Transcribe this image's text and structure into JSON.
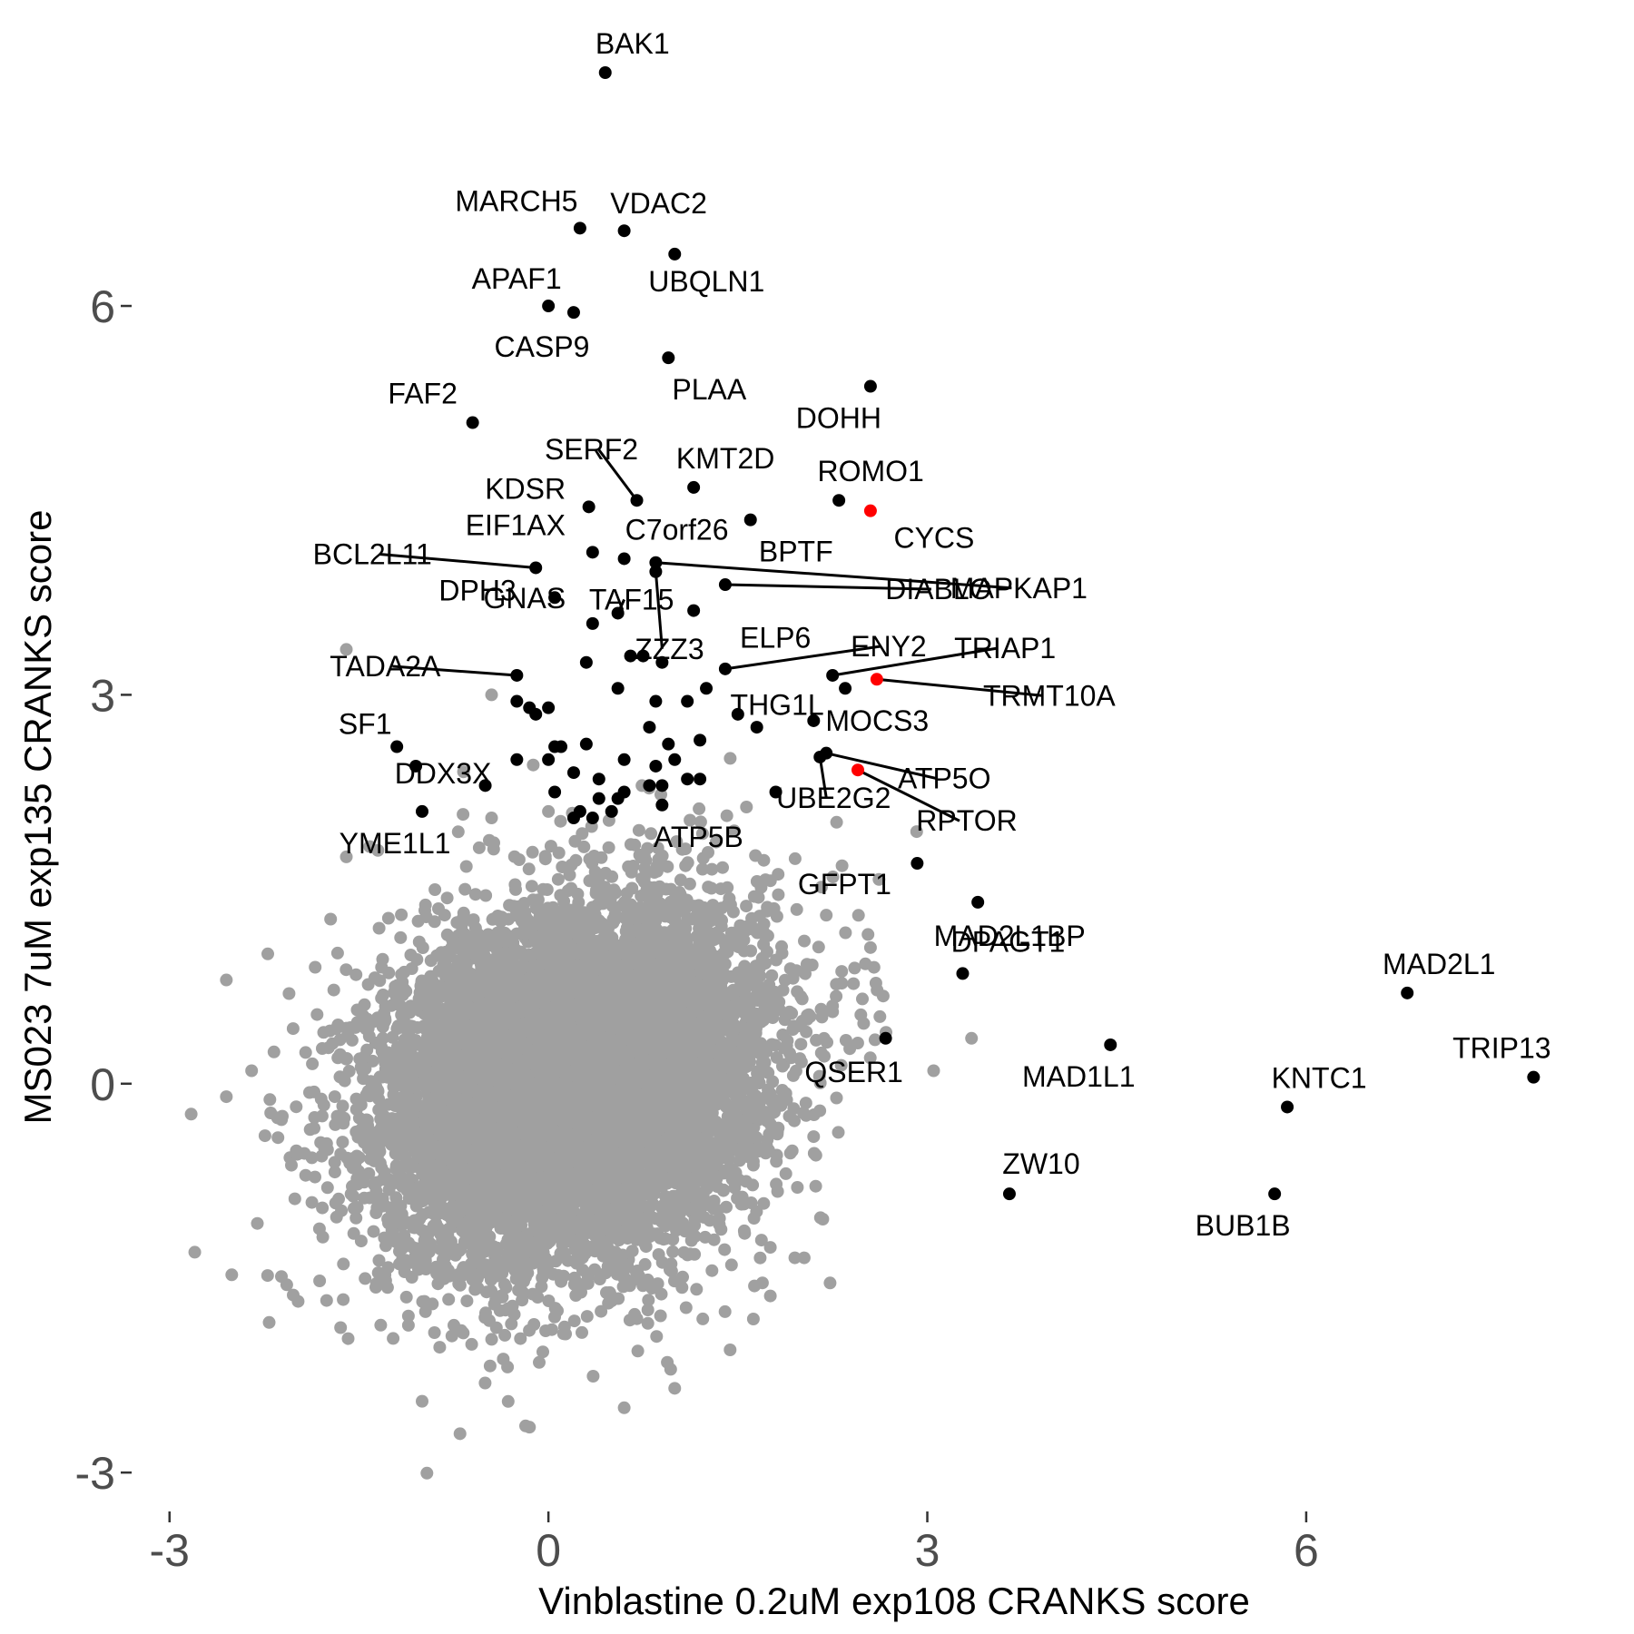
{
  "chart_data": {
    "type": "scatter",
    "xlabel": "Vinblastine 0.2uM exp108 CRANKS score",
    "ylabel": "MS023 7uM exp135 CRANKS score",
    "xlim": [
      -3.3,
      8.2
    ],
    "ylim": [
      -3.3,
      7.8
    ],
    "grid": false,
    "legend": "none",
    "x_ticks": [
      {
        "value": -3,
        "label": "-3"
      },
      {
        "value": 0,
        "label": "0"
      },
      {
        "value": 3,
        "label": "3"
      },
      {
        "value": 6,
        "label": "6"
      }
    ],
    "y_ticks": [
      {
        "value": -3,
        "label": "-3"
      },
      {
        "value": 0,
        "label": "0"
      },
      {
        "value": 3,
        "label": "3"
      },
      {
        "value": 6,
        "label": "6"
      }
    ],
    "colors": {
      "background_points": "#a0a0a0",
      "highlight": "#000000",
      "red_highlight": "#ff0000"
    },
    "background_cloud": {
      "description_of_shape": "dense roughly elliptical cloud",
      "center": [
        0.2,
        0.0
      ],
      "sd": [
        0.75,
        0.68
      ],
      "correlation": 0.2,
      "count": 9000
    },
    "background_outliers": [
      [
        -2.8,
        -1.3
      ],
      [
        -2.55,
        0.8
      ],
      [
        -2.55,
        -0.1
      ],
      [
        -1.6,
        3.35
      ],
      [
        -0.45,
        3.0
      ],
      [
        -1.6,
        1.75
      ],
      [
        -1.35,
        1.8
      ],
      [
        -0.15,
        -2.65
      ],
      [
        -0.7,
        -2.7
      ],
      [
        -1.0,
        -2.45
      ],
      [
        3.05,
        0.1
      ],
      [
        3.35,
        0.35
      ],
      [
        2.55,
        1.05
      ],
      [
        2.25,
        0.6
      ],
      [
        2.2,
        1.3
      ],
      [
        0.6,
        -2.5
      ],
      [
        1.0,
        -2.35
      ],
      [
        0.0,
        2.1
      ],
      [
        -0.45,
        2.05
      ],
      [
        -2.35,
        0.1
      ]
    ],
    "labeled_points": [
      {
        "label": "BAK1",
        "x": 0.45,
        "y": 7.8,
        "color": "black"
      },
      {
        "label": "MARCH5",
        "x": 0.25,
        "y": 6.6,
        "color": "black"
      },
      {
        "label": "VDAC2",
        "x": 0.6,
        "y": 6.58,
        "color": "black"
      },
      {
        "label": "UBQLN1",
        "x": 1.0,
        "y": 6.4,
        "color": "black"
      },
      {
        "label": "APAF1",
        "x": 0.0,
        "y": 6.0,
        "color": "black"
      },
      {
        "label": "CASP9",
        "x": 0.2,
        "y": 5.95,
        "color": "black"
      },
      {
        "label": "PLAA",
        "x": 0.95,
        "y": 5.6,
        "color": "black"
      },
      {
        "label": "DOHH",
        "x": 2.55,
        "y": 5.38,
        "color": "black"
      },
      {
        "label": "FAF2",
        "x": -0.6,
        "y": 5.1,
        "color": "black"
      },
      {
        "label": "SERF2",
        "x": 0.7,
        "y": 4.5,
        "color": "black"
      },
      {
        "label": "KMT2D",
        "x": 1.15,
        "y": 4.6,
        "color": "black"
      },
      {
        "label": "ROMO1",
        "x": 2.3,
        "y": 4.5,
        "color": "black"
      },
      {
        "label": "CYCS",
        "x": 2.55,
        "y": 4.42,
        "color": "red"
      },
      {
        "label": "KDSR",
        "x": 0.32,
        "y": 4.45,
        "color": "black"
      },
      {
        "label": "BPTF",
        "x": 1.6,
        "y": 4.35,
        "color": "black"
      },
      {
        "label": "EIF1AX",
        "x": 0.35,
        "y": 4.1,
        "color": "black"
      },
      {
        "label": "C7orf26",
        "x": 0.6,
        "y": 4.05,
        "color": "black"
      },
      {
        "label": "BCL2L11",
        "x": -0.1,
        "y": 3.98,
        "color": "black"
      },
      {
        "label": "MAPKAP1",
        "x": 0.85,
        "y": 4.02,
        "color": "black"
      },
      {
        "label": "DIABLO",
        "x": 1.4,
        "y": 3.85,
        "color": "black"
      },
      {
        "label": "DPH3",
        "x": 0.05,
        "y": 3.75,
        "color": "black"
      },
      {
        "label": "TAF15",
        "x": 0.55,
        "y": 3.63,
        "color": "black"
      },
      {
        "label": "ZZZ3",
        "x": 0.85,
        "y": 3.95,
        "color": "black"
      },
      {
        "label": "ELP6",
        "x": 1.15,
        "y": 3.65,
        "color": "black"
      },
      {
        "label": "GNAS",
        "x": 0.35,
        "y": 3.55,
        "color": "black"
      },
      {
        "label": "TADA2A",
        "x": -0.25,
        "y": 3.15,
        "color": "black"
      },
      {
        "label": "ENY2",
        "x": 1.4,
        "y": 3.2,
        "color": "black"
      },
      {
        "label": "TRIAP1",
        "x": 2.25,
        "y": 3.15,
        "color": "black"
      },
      {
        "label": "TRMT10A",
        "x": 2.6,
        "y": 3.12,
        "color": "red"
      },
      {
        "label": "THG1L",
        "x": 2.35,
        "y": 3.05,
        "color": "black"
      },
      {
        "label": "MOCS3",
        "x": 2.1,
        "y": 2.8,
        "color": "black"
      },
      {
        "label": "SF1",
        "x": -1.2,
        "y": 2.6,
        "color": "black"
      },
      {
        "label": "ATP5O",
        "x": 2.2,
        "y": 2.55,
        "color": "black"
      },
      {
        "label": "RPTOR",
        "x": 2.45,
        "y": 2.42,
        "color": "red"
      },
      {
        "label": "UBE2G2",
        "x": 2.15,
        "y": 2.52,
        "color": "black"
      },
      {
        "label": "DDX3X",
        "x": -1.05,
        "y": 2.45,
        "color": "black"
      },
      {
        "label": "YME1L1",
        "x": -1.0,
        "y": 2.1,
        "color": "black"
      },
      {
        "label": "ATP5B",
        "x": 0.9,
        "y": 2.15,
        "color": "black"
      },
      {
        "label": "GFPT1",
        "x": 2.92,
        "y": 1.7,
        "color": "black"
      },
      {
        "label": "MAD2L1BP",
        "x": 3.4,
        "y": 1.4,
        "color": "black"
      },
      {
        "label": "MAD2L1",
        "x": 6.8,
        "y": 0.7,
        "color": "black"
      },
      {
        "label": "DPAGT1",
        "x": 3.28,
        "y": 0.85,
        "color": "black"
      },
      {
        "label": "QSER1",
        "x": 2.67,
        "y": 0.35,
        "color": "black"
      },
      {
        "label": "MAD1L1",
        "x": 4.45,
        "y": 0.3,
        "color": "black"
      },
      {
        "label": "TRIP13",
        "x": 7.8,
        "y": 0.05,
        "color": "black"
      },
      {
        "label": "KNTC1",
        "x": 5.85,
        "y": -0.18,
        "color": "black"
      },
      {
        "label": "ZW10",
        "x": 3.65,
        "y": -0.85,
        "color": "black"
      },
      {
        "label": "BUB1B",
        "x": 5.75,
        "y": -0.85,
        "color": "black"
      }
    ],
    "unlabeled_black_points": [
      [
        0.3,
        3.25
      ],
      [
        0.65,
        3.3
      ],
      [
        0.75,
        3.3
      ],
      [
        0.9,
        3.25
      ],
      [
        0.55,
        3.05
      ],
      [
        -0.25,
        2.95
      ],
      [
        0.85,
        2.95
      ],
      [
        1.1,
        2.95
      ],
      [
        1.25,
        3.05
      ],
      [
        -0.1,
        2.85
      ],
      [
        -0.15,
        2.9
      ],
      [
        0.0,
        2.9
      ],
      [
        0.8,
        2.75
      ],
      [
        1.5,
        2.85
      ],
      [
        1.65,
        2.75
      ],
      [
        0.05,
        2.6
      ],
      [
        0.1,
        2.6
      ],
      [
        0.3,
        2.62
      ],
      [
        0.95,
        2.62
      ],
      [
        1.2,
        2.65
      ],
      [
        -0.25,
        2.5
      ],
      [
        0.0,
        2.5
      ],
      [
        0.6,
        2.5
      ],
      [
        0.85,
        2.45
      ],
      [
        1.0,
        2.5
      ],
      [
        0.2,
        2.4
      ],
      [
        0.4,
        2.35
      ],
      [
        0.8,
        2.3
      ],
      [
        1.1,
        2.35
      ],
      [
        1.2,
        2.35
      ],
      [
        -0.5,
        2.3
      ],
      [
        0.05,
        2.25
      ],
      [
        0.4,
        2.2
      ],
      [
        0.6,
        2.25
      ],
      [
        0.9,
        2.3
      ],
      [
        0.55,
        2.2
      ],
      [
        0.2,
        2.05
      ],
      [
        0.35,
        2.05
      ],
      [
        0.5,
        2.1
      ],
      [
        0.25,
        2.1
      ],
      [
        1.8,
        2.25
      ]
    ]
  }
}
